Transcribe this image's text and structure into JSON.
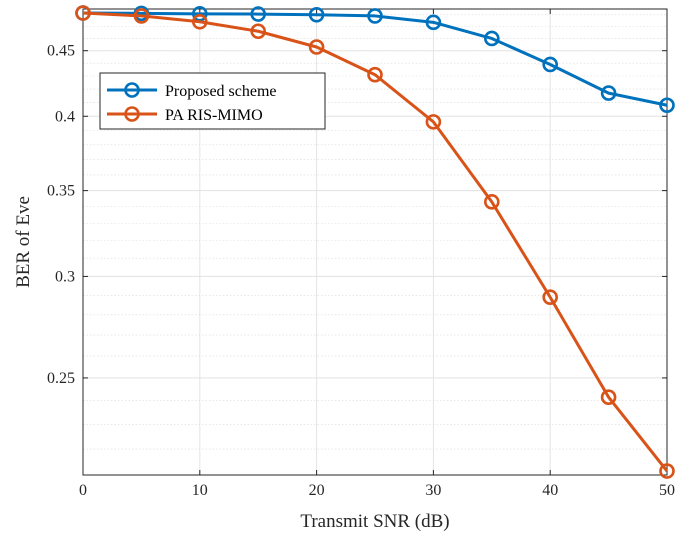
{
  "chart_data": {
    "type": "line",
    "xlabel": "Transmit SNR (dB)",
    "ylabel": "BER of Eve",
    "x": [
      0,
      5,
      10,
      15,
      20,
      25,
      30,
      35,
      40,
      45,
      50
    ],
    "xlim": [
      0,
      50
    ],
    "ylim": [
      0.21,
      0.485
    ],
    "y_scale": "log",
    "xticks": [
      0,
      10,
      20,
      30,
      40,
      50
    ],
    "xtick_labels": [
      "0",
      "10",
      "20",
      "30",
      "40",
      "50"
    ],
    "yticks": [
      0.25,
      0.3,
      0.35,
      0.4,
      0.45
    ],
    "ytick_labels": [
      "0.25",
      "0.3",
      "0.35",
      "0.4",
      "0.45"
    ],
    "grid": true,
    "legend_position": "top-left",
    "series": [
      {
        "name": "Proposed scheme",
        "color": "#0072BD",
        "marker": "circle",
        "values": [
          0.4815,
          0.4812,
          0.4808,
          0.4806,
          0.48,
          0.479,
          0.4735,
          0.46,
          0.439,
          0.417,
          0.408
        ]
      },
      {
        "name": "PA RIS-MIMO",
        "color": "#D95319",
        "marker": "circle",
        "values": [
          0.4815,
          0.479,
          0.474,
          0.466,
          0.453,
          0.431,
          0.396,
          0.343,
          0.289,
          0.2415,
          0.2115
        ]
      }
    ]
  }
}
